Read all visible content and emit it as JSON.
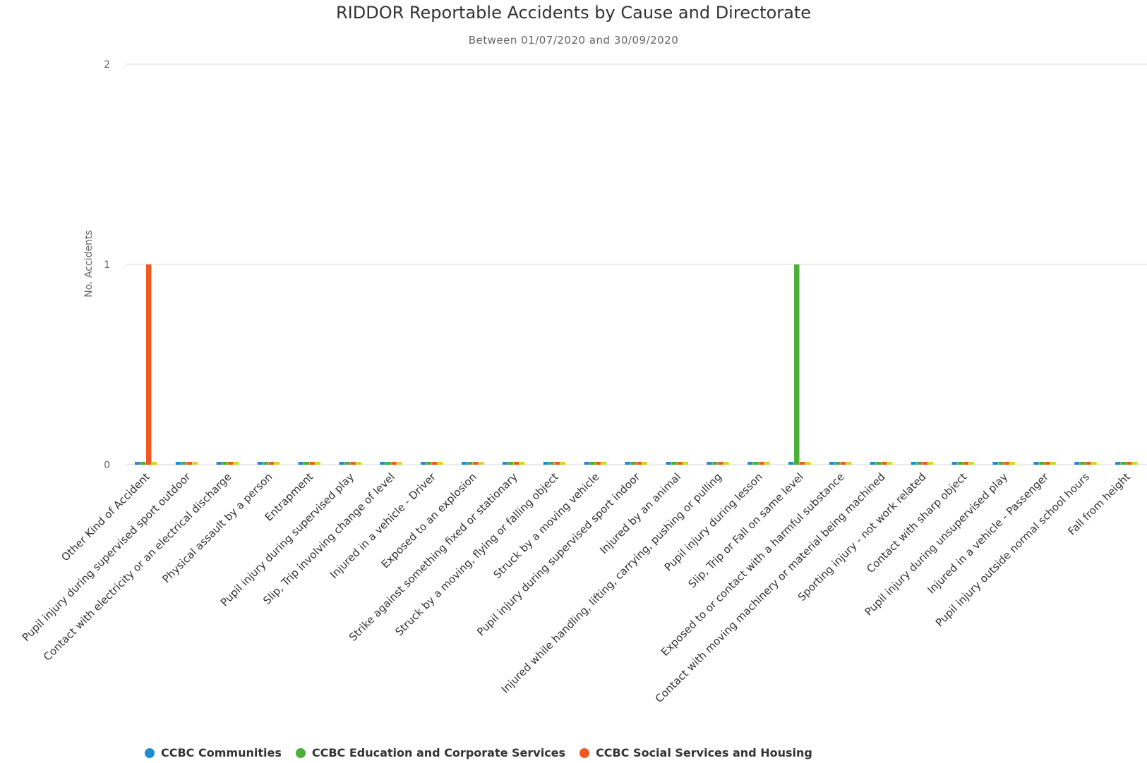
{
  "chart_data": {
    "type": "bar",
    "title": "RIDDOR Reportable Accidents by Cause and Directorate",
    "subtitle": "Between 01/07/2020 and 30/09/2020",
    "ylabel": "No. Accidents",
    "xlabel": "",
    "ylim": [
      0,
      2
    ],
    "yticks": [
      0,
      1,
      2
    ],
    "grid": true,
    "legend_position": "bottom-left",
    "categories": [
      "Other Kind of Accident",
      "Pupil injury during supervised sport outdoor",
      "Contact with electricity or an electrical discharge",
      "Physical assault by a person",
      "Entrapment",
      "Pupil injury during supervised play",
      "Slip, Trip involving change of level",
      "Injured in a vehicle - Driver",
      "Exposed to an explosion",
      "Strike against something fixed or stationary",
      "Struck by a moving, flying or falling object",
      "Struck by a moving vehicle",
      "Pupil injury during supervised sport indoor",
      "Injured by an animal",
      "Injured while handling, lifting, carrying, pushing or pulling",
      "Pupil injury during lesson",
      "Slip, Trip or Fall on same level",
      "Exposed to or contact with a harmful substance",
      "Contact with moving machinery or material being machined",
      "Sporting injury - not work related",
      "Contact with sharp object",
      "Pupil injury during unsupervised play",
      "Injured in a vehicle - Passenger",
      "Pupil injury outside normal school hours",
      "Fall from height"
    ],
    "series": [
      {
        "name": "CCBC Communities",
        "color": "#1f8ed0",
        "values": [
          0,
          0,
          0,
          0,
          0,
          0,
          0,
          0,
          0,
          0,
          0,
          0,
          0,
          0,
          0,
          0,
          0,
          0,
          0,
          0,
          0,
          0,
          0,
          0,
          0
        ]
      },
      {
        "name": "CCBC Education and Corporate Services",
        "color": "#4caf39",
        "values": [
          0,
          0,
          0,
          0,
          0,
          0,
          0,
          0,
          0,
          0,
          0,
          0,
          0,
          0,
          0,
          0,
          1,
          0,
          0,
          0,
          0,
          0,
          0,
          0,
          0
        ]
      },
      {
        "name": "CCBC Social Services and Housing",
        "color": "#ef5a24",
        "values": [
          1,
          0,
          0,
          0,
          0,
          0,
          0,
          0,
          0,
          0,
          0,
          0,
          0,
          0,
          0,
          0,
          0,
          0,
          0,
          0,
          0,
          0,
          0,
          0,
          0
        ]
      },
      {
        "color": "#d6d61e",
        "values": [
          0,
          0,
          0,
          0,
          0,
          0,
          0,
          0,
          0,
          0,
          0,
          0,
          0,
          0,
          0,
          0,
          0,
          0,
          0,
          0,
          0,
          0,
          0,
          0,
          0
        ]
      }
    ]
  }
}
